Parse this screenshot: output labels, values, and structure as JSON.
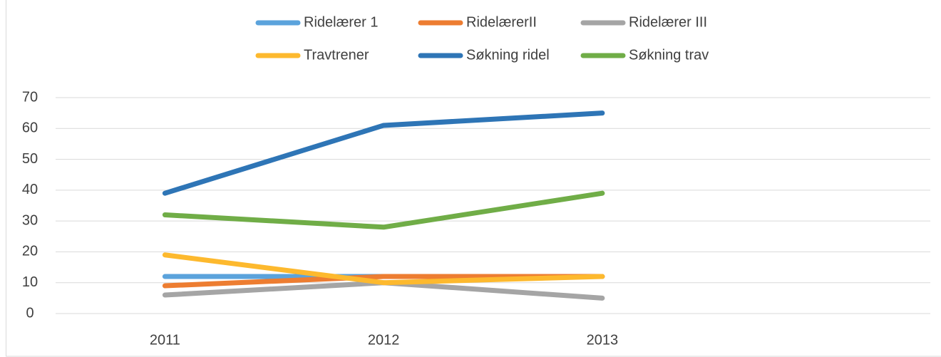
{
  "chart_data": {
    "type": "line",
    "categories": [
      "2011",
      "2012",
      "2013",
      null
    ],
    "series": [
      {
        "name": "Ridelærer 1",
        "color": "#5ba3dc",
        "values": [
          12,
          12,
          12,
          null
        ]
      },
      {
        "name": "RidelærerII",
        "color": "#ed7d31",
        "values": [
          9,
          12,
          12,
          null
        ]
      },
      {
        "name": "Ridelærer III",
        "color": "#a5a5a5",
        "values": [
          6,
          10,
          5,
          null
        ]
      },
      {
        "name": "Travtrener",
        "color": "#fdb92e",
        "values": [
          19,
          10,
          12,
          null
        ]
      },
      {
        "name": "Søkning ridel",
        "color": "#2e75b6",
        "values": [
          39,
          61,
          65,
          null
        ]
      },
      {
        "name": "Søkning trav",
        "color": "#70ad47",
        "values": [
          32,
          28,
          39,
          null
        ]
      }
    ],
    "ylim": [
      0,
      70
    ],
    "yticks": [
      0,
      10,
      20,
      30,
      40,
      50,
      60,
      70
    ],
    "grid": true,
    "legend": "top"
  }
}
